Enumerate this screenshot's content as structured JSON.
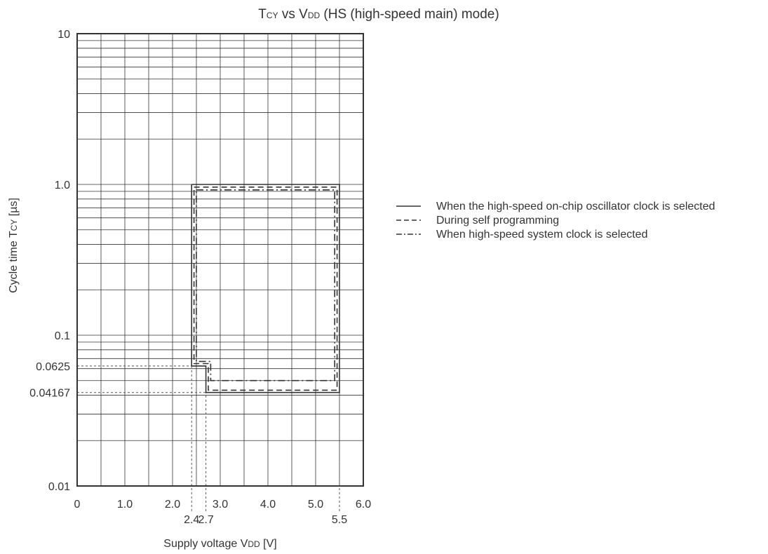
{
  "chart_data": {
    "type": "line",
    "title": {
      "main_a": "T",
      "sub_a": "CY",
      "mid": " vs V",
      "sub_b": "DD",
      "tail": " (HS (high-speed main) mode)"
    },
    "xlabel": {
      "main": "Supply voltage V",
      "sub": "DD",
      "tail": " [V]"
    },
    "ylabel": {
      "main": "Cycle time T",
      "sub": "CY",
      "tail": " [µs]"
    },
    "x_scale": "linear",
    "y_scale": "log",
    "xlim": [
      0,
      6.0
    ],
    "ylim": [
      0.01,
      10
    ],
    "grid": true,
    "x_ticks": [
      {
        "value": 0,
        "label": "0"
      },
      {
        "value": 1.0,
        "label": "1.0"
      },
      {
        "value": 2.0,
        "label": "2.0"
      },
      {
        "value": 3.0,
        "label": "3.0"
      },
      {
        "value": 4.0,
        "label": "4.0"
      },
      {
        "value": 5.0,
        "label": "5.0"
      },
      {
        "value": 6.0,
        "label": "6.0"
      }
    ],
    "x_ticks_extra": [
      {
        "value": 2.4,
        "label": "2.4"
      },
      {
        "value": 2.7,
        "label": "2.7"
      },
      {
        "value": 5.5,
        "label": "5.5"
      }
    ],
    "y_ticks": [
      {
        "value": 10,
        "label": "10"
      },
      {
        "value": 1.0,
        "label": "1.0"
      },
      {
        "value": 0.1,
        "label": "0.1"
      },
      {
        "value": 0.0625,
        "label": "0.0625"
      },
      {
        "value": 0.04167,
        "label": "0.04167"
      },
      {
        "value": 0.01,
        "label": "0.01"
      }
    ],
    "legend_position": "right",
    "series": [
      {
        "name": "When the high-speed on-chip oscillator clock is selected",
        "style": "solid",
        "points": [
          [
            2.4,
            1.0
          ],
          [
            5.5,
            1.0
          ],
          [
            5.5,
            0.04167
          ],
          [
            2.7,
            0.04167
          ],
          [
            2.7,
            0.0625
          ],
          [
            2.4,
            0.0625
          ],
          [
            2.4,
            1.0
          ]
        ]
      },
      {
        "name": "During self programming",
        "style": "dashed",
        "points": [
          [
            2.45,
            0.96
          ],
          [
            5.45,
            0.96
          ],
          [
            5.45,
            0.0432
          ],
          [
            2.75,
            0.0432
          ],
          [
            2.75,
            0.0648
          ],
          [
            2.45,
            0.0648
          ],
          [
            2.45,
            0.96
          ]
        ]
      },
      {
        "name": "When high-speed system clock is selected",
        "style": "dashdot",
        "points": [
          [
            2.5,
            0.92
          ],
          [
            5.4,
            0.92
          ],
          [
            5.4,
            0.05
          ],
          [
            2.8,
            0.05
          ],
          [
            2.8,
            0.067
          ],
          [
            2.5,
            0.067
          ],
          [
            2.5,
            0.92
          ]
        ]
      }
    ],
    "reference_lines": {
      "vertical": [
        2.4,
        2.7,
        5.5
      ],
      "horizontal": [
        0.0625,
        0.04167
      ]
    },
    "colors": {
      "line": "#333333",
      "grid": "#333333",
      "reference": "#555555"
    }
  }
}
